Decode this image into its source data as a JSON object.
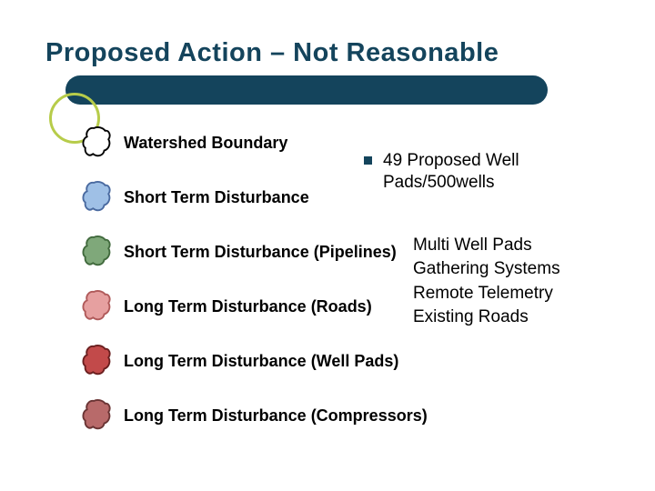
{
  "title": "Proposed Action – Not Reasonable",
  "accent_color": "#b7cc4a",
  "bar_color": "#14445c",
  "legend": [
    {
      "label": "Watershed Boundary",
      "fill": "#ffffff",
      "stroke": "#000000"
    },
    {
      "label": "Short Term Disturbance",
      "fill": "#9fc0e6",
      "stroke": "#4a6aa0"
    },
    {
      "label": "Short Term Disturbance (Pipelines)",
      "fill": "#7fa87a",
      "stroke": "#416a3d"
    },
    {
      "label": "Long Term Disturbance (Roads)",
      "fill": "#e6a0a0",
      "stroke": "#b05a5a"
    },
    {
      "label": "Long Term Disturbance (Well Pads)",
      "fill": "#c24a4a",
      "stroke": "#6a1f1f"
    },
    {
      "label": "Long Term Disturbance (Compressors)",
      "fill": "#b86a6a",
      "stroke": "#6a3434"
    }
  ],
  "bullet": "49 Proposed Well Pads/500wells",
  "sublist": [
    "Multi Well Pads",
    "Gathering Systems",
    "Remote Telemetry",
    "Existing Roads"
  ]
}
